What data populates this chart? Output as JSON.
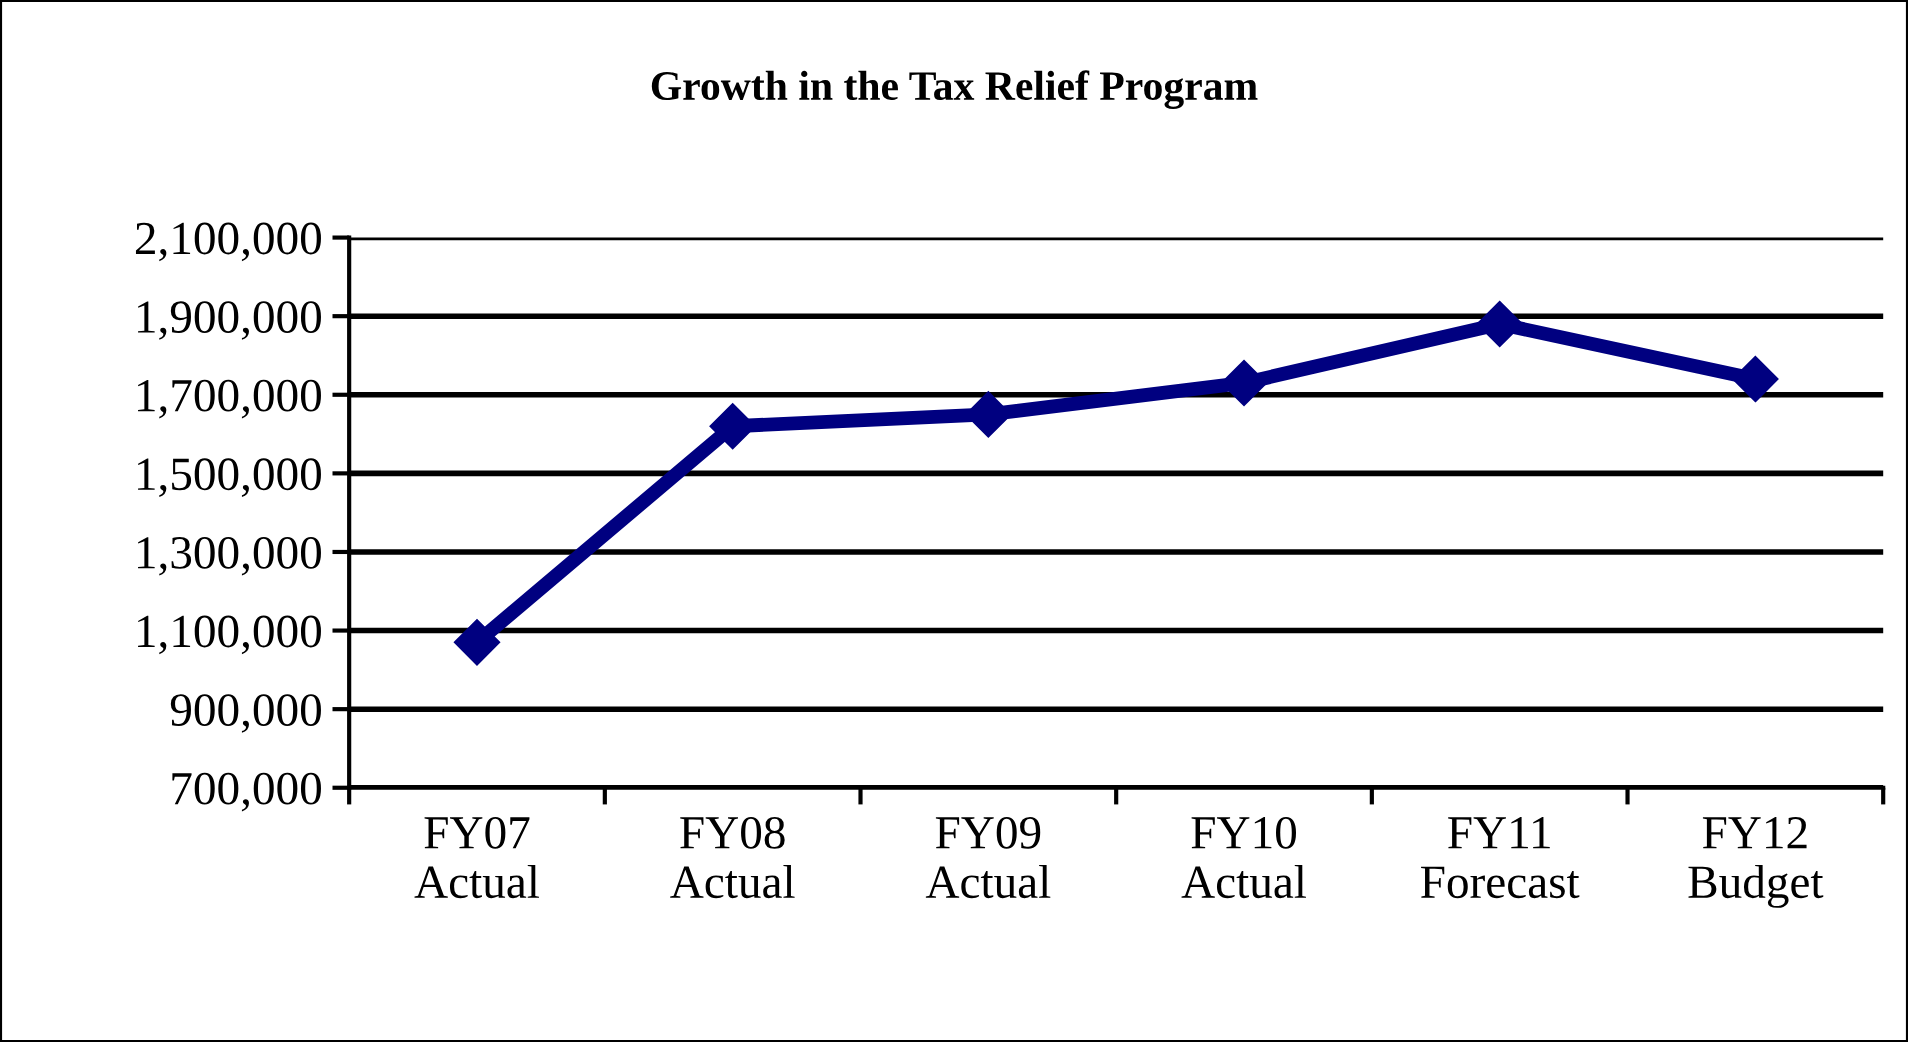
{
  "chart_data": {
    "type": "line",
    "title": "Growth in the Tax Relief Program",
    "categories": [
      "FY07\nActual",
      "FY08\nActual",
      "FY09\nActual",
      "FY10\nActual",
      "FY11\nForecast",
      "FY12\nBudget"
    ],
    "series": [
      {
        "color": "#000080",
        "values": [
          1070000,
          1620000,
          1650000,
          1730000,
          1880000,
          1740000
        ]
      }
    ],
    "ylim": [
      700000,
      2100000
    ],
    "yticks": [
      {
        "value": 700000,
        "label": "700,000"
      },
      {
        "value": 900000,
        "label": "900,000"
      },
      {
        "value": 1100000,
        "label": "1,100,000"
      },
      {
        "value": 1300000,
        "label": "1,300,000"
      },
      {
        "value": 1500000,
        "label": "1,500,000"
      },
      {
        "value": 1700000,
        "label": "1,700,000"
      },
      {
        "value": 1900000,
        "label": "1,900,000"
      },
      {
        "value": 2100000,
        "label": "2,100,000"
      }
    ],
    "grid": "y",
    "marker": "diamond",
    "line_style": "solid"
  }
}
